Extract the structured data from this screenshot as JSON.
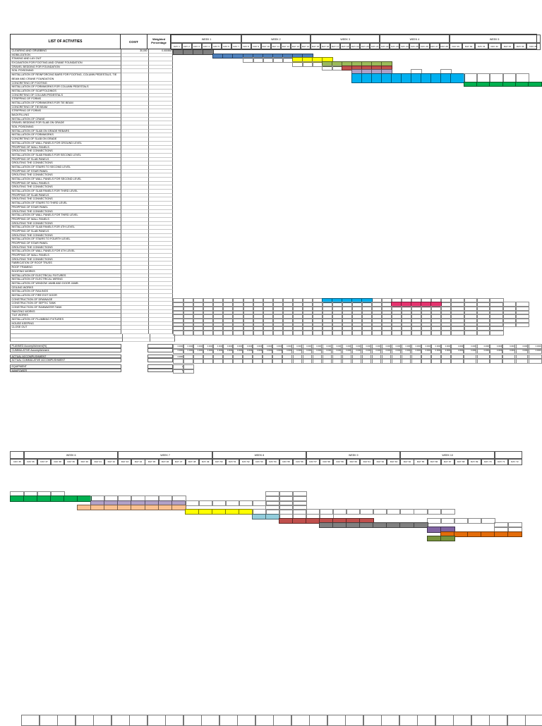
{
  "colors": {
    "gray": "#808080",
    "blue": "#4F81BD",
    "yellow": "#FFFF00",
    "olive": "#9BBB59",
    "red": "#C0504D",
    "lavender": "#B1A0C7",
    "cyan": "#00B0F0",
    "green": "#00B050",
    "pink": "#E8316E",
    "peach": "#FAC090",
    "sky": "#92CDDC",
    "purple": "#8064A2",
    "olivedark": "#77933C",
    "orange": "#E36C0A"
  },
  "top_table": {
    "headers": {
      "activities": "LIST OF ACTIVITIES",
      "cost": "COST",
      "weighted": "Weighted Percentage"
    },
    "day_prefix": "DAY",
    "last_day": 35,
    "tall_row": 7,
    "first_row": {
      "cost": "30,000",
      "weighted": "0.000592"
    },
    "weeks": [
      {
        "label": "WEEK 1",
        "start": 1,
        "end": 7
      },
      {
        "label": "WEEK 2",
        "start": 8,
        "end": 14
      },
      {
        "label": "WEEK 3",
        "start": 15,
        "end": 21
      },
      {
        "label": "WEEK 4",
        "start": 22,
        "end": 28
      },
      {
        "label": "WEEK 5",
        "start": 29,
        "end": 35
      }
    ],
    "activities": [
      "CLEARING AND GRUBBING",
      "MOBILIZATION",
      "STAKING AND LAY-OUT",
      "EXCAVATION FOR FOOTING AND CRANE FOUNDATION",
      "GRAVEL BEDDING FOR FOUNDATION",
      "SOIL POISONING",
      "INSTALLATION OF REINFORCING BARS FOR FOOTING, COLUMN PEDESTALS, TIE BEAM AND CRANE FOUNDATION",
      "CONCRETING OF FOOTING",
      "INSTALLATION OF FORMWORKS FOR COLUMN PEDESTALS",
      "INSTALLATION OF SCAFFOLDINGS",
      "CONCRETING OF COLUMN PEDESTALS",
      "STRIPPING OF FORMS",
      "INSTALLATION OF FORMWORKS FOR TIE BEAM",
      "CONCRETING OF TIE BEAM",
      "STRIPPING OF FORMS",
      "BACKFILLING",
      "INSTALLATION OF CRANE",
      "GRAVEL BEDDING FOR SLAB ON GRADE",
      "SOIL POISONING",
      "INSTALLATION OF SLAB ON GRADE REBARS",
      "INSTALLATION OF FORMWORKS",
      "CONCRETING OF SLAB ON GRADE",
      "INSTALLATION OF WALL PANELS FOR GROUND LEVEL",
      "PROPPING OF WALL PANELS",
      "GROUTING THE CONNECTIONS",
      "INSTALLATION OF SLAB PANELS FOR SECOND LEVEL",
      "PROPPING OF SLAB PANELS",
      "GROUTING THE CONNECTIONS",
      "INSTALLATION OF STAIRS TO SECOND LEVEL",
      "PROPPING OF STAIR PANEL",
      "GROUTING THE CONNECTIONS",
      "INSTALLATION OF WALL PANELS FOR SECOND LEVEL",
      "PROPPING OF WALL PANELS",
      "GROUTING THE CONNECTIONS",
      "INSTALLATION OF SLAB PANELS FOR THIRD LEVEL",
      "PROPPING OF SLAB PANELS",
      "GROUTING THE CONNECTIONS",
      "INSTALLATION OF STAIRS TO THIRD LEVEL",
      "PROPPING OF STAIR PANEL",
      "GROUTING THE CONNECTIONS",
      "INSTALLATION OF WALL PANELS FOR THIRD LEVEL",
      "PROPPING OF WALL PANELS",
      "GROUTING THE CONNECTIONS",
      "INSTALLATION OF SLAB PANELS FOR 4TH LEVEL",
      "PROPPING OF SLAB PANELS",
      "GROUTING THE CONNECTIONS",
      "INSTALLATION OF STAIRS TO FOURTH LEVEL",
      "PROPPING OF STAIR PANEL",
      "GROUTING THE CONNECTIONS",
      "INSTALLATION OF WALL PANELS FOR 4TH LEVEL",
      "PROPPING OF WALL PANELS",
      "GROUTING THE CONNECTIONS",
      "FABRICATION OF ROOF TRUSS",
      "ROOF FRAMING",
      "ROOFING WORKS",
      "INSTALLATION OF ELECTRICAL FIXTURES",
      "INSTALLATION OF ELECTRICAL WIRING",
      "INSTALLATION OF WINDOW JAMB AND DOOR JAMB",
      "CEILING WORKS",
      "INSTALLATION OF RAILINGS",
      "INSTALLATION OF FIRE EXIT DOOR",
      "CONSTRUCTION OF DRAINAGE",
      "CONSTRUCTION OF SEPTIC TANK",
      "CONSTRUCTION OF RAINWATER TANK",
      "PAINTING WORKS",
      "TILE WORKS",
      "INSTALLATION OF PLUMBING FIXTURES",
      "HOUSE KEEPING",
      "CLOSE OUT",
      ""
    ],
    "bars": [
      {
        "row": 1,
        "fill": "gray",
        "start": 1,
        "end": 4
      },
      {
        "row": 2,
        "fill": "blue",
        "start": 5,
        "end": 14
      },
      {
        "row": 3,
        "outline": true,
        "start": 8,
        "end": 12
      },
      {
        "row": 3,
        "fill": "yellow",
        "start": 13,
        "end": 16
      },
      {
        "row": 4,
        "outline": true,
        "start": 13,
        "end": 15
      },
      {
        "row": 4,
        "fill": "olive",
        "start": 16,
        "end": 22
      },
      {
        "row": 5,
        "outline": true,
        "start": 16,
        "end": 17
      },
      {
        "row": 5,
        "fill": "red",
        "start": 18,
        "end": 22
      },
      {
        "row": 6,
        "fill": "lavender",
        "start": 19,
        "end": 22
      },
      {
        "row": 6,
        "outline": true,
        "start": 25,
        "end": 25
      },
      {
        "row": 6,
        "outline": true,
        "start": 28,
        "end": 28
      },
      {
        "row": 7,
        "fill": "cyan",
        "start": 19,
        "end": 29
      },
      {
        "row": 7,
        "outline": true,
        "start": 30,
        "end": 34
      },
      {
        "row": 8,
        "fill": "green",
        "start": 30,
        "end": 35
      },
      {
        "row": 62,
        "fill": "cyan",
        "start": 16,
        "end": 20
      },
      {
        "row": 63,
        "fill": "pink",
        "start": 23,
        "end": 27
      }
    ],
    "grid": [
      {
        "row_start": 62,
        "row_end": 70,
        "start": 1,
        "end": 32
      },
      {
        "row_start": 63,
        "row_end": 68,
        "start": 33,
        "end": 34
      }
    ]
  },
  "summary": {
    "planned_label": "PLANNED Accomplishment(%)",
    "planned_value": "0.0000",
    "cumulative_label": "CUMMULATIVE Accomplishment",
    "cumulative_value": "0.0000",
    "actual_label": "ACTUAL ACCOMPLISHMENT",
    "actual_value": "0.0000",
    "actual_cumulative_label": "ACTUAL CUMMULATIVE ACCOMPLISHMENT",
    "equipment_label": "EQUIPMENT",
    "equipment_value": "1",
    "manpower_label": "MANPOWER",
    "manpower_value": "5"
  },
  "section2": {
    "day_prefix": "DAY",
    "first_day": 35,
    "last_day": 72,
    "weeks": [
      {
        "label": "",
        "start": 35,
        "end": 35
      },
      {
        "label": "WEEK 6",
        "start": 36,
        "end": 42
      },
      {
        "label": "WEEK 7",
        "start": 43,
        "end": 49
      },
      {
        "label": "WEEK 8",
        "start": 50,
        "end": 56
      },
      {
        "label": "WEEK 9",
        "start": 57,
        "end": 63
      },
      {
        "label": "WEEK 10",
        "start": 64,
        "end": 70
      },
      {
        "label": "",
        "start": 71,
        "end": 72
      }
    ],
    "bars": [
      {
        "r": 1,
        "outline": true,
        "start": 35,
        "end": 38
      },
      {
        "r": 1,
        "outline": true,
        "start": 54,
        "end": 56
      },
      {
        "r": 2,
        "fill": "green",
        "start": 35,
        "end": 40
      },
      {
        "r": 2,
        "outline": true,
        "start": 41,
        "end": 47
      },
      {
        "r": 2,
        "outline": true,
        "start": 54,
        "end": 56
      },
      {
        "r": 3,
        "fill": "lavender",
        "start": 41,
        "end": 47
      },
      {
        "r": 3,
        "outline": true,
        "start": 48,
        "end": 56
      },
      {
        "r": 4,
        "fill": "peach",
        "start": 40,
        "end": 47
      },
      {
        "r": 4,
        "outline": true,
        "start": 54,
        "end": 56
      },
      {
        "r": 5,
        "fill": "yellow",
        "start": 48,
        "end": 52
      },
      {
        "r": 5,
        "outline": true,
        "start": 53,
        "end": 67
      },
      {
        "r": 6,
        "fill": "sky",
        "start": 53,
        "end": 54
      },
      {
        "r": 6,
        "outline": true,
        "start": 55,
        "end": 58
      },
      {
        "r": 7,
        "fill": "red",
        "start": 55,
        "end": 61
      },
      {
        "r": 7,
        "outline": true,
        "start": 66,
        "end": 70
      },
      {
        "r": 8,
        "fill": "gray",
        "start": 58,
        "end": 65
      },
      {
        "r": 8,
        "outline": true,
        "start": 71,
        "end": 72
      },
      {
        "r": 9,
        "fill": "purple",
        "start": 66,
        "end": 67
      },
      {
        "r": 9,
        "outline": true,
        "start": 71,
        "end": 72
      },
      {
        "r": 10,
        "fill": "orange",
        "start": 67,
        "end": 72
      },
      {
        "r": 11,
        "fill": "olivedark",
        "start": 66,
        "end": 67
      }
    ]
  }
}
